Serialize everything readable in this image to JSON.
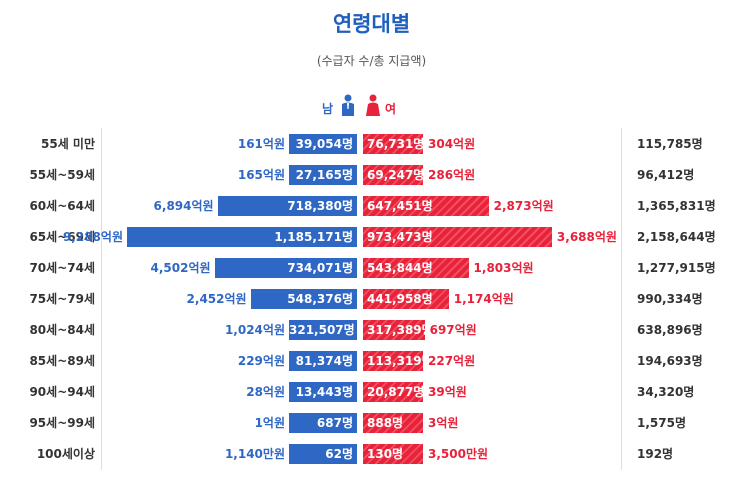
{
  "title": "연령대별",
  "subtitle": "(수급자 수/총 지급액)",
  "legend": {
    "male": "남",
    "female": "여"
  },
  "colors": {
    "male": "#2f68c4",
    "female": "#e8223a",
    "title": "#1f5fbf"
  },
  "icons": {
    "male": "male-person-icon",
    "female": "female-person-icon"
  },
  "chart_data": {
    "type": "bar",
    "orientation": "horizontal-diverging",
    "categories": [
      "55세 미만",
      "55세~59세",
      "60세~64세",
      "65세~69세",
      "70세~74세",
      "75세~79세",
      "80세~84세",
      "85세~89세",
      "90세~94세",
      "95세~99세",
      "100세이상"
    ],
    "series": [
      {
        "name": "남",
        "values": [
          39054,
          27165,
          718380,
          1185171,
          734071,
          548376,
          321507,
          81374,
          13443,
          687,
          62
        ],
        "labels": [
          "39,054명",
          "27,165명",
          "718,380명",
          "1,185,171명",
          "734,071명",
          "548,376명",
          "321,507명",
          "81,374명",
          "13,443명",
          "687명",
          "62명"
        ],
        "amounts": [
          "161억원",
          "165억원",
          "6,894억원",
          "9,288억원",
          "4,502억원",
          "2,452억원",
          "1,024억원",
          "229억원",
          "28억원",
          "1억원",
          "1,140만원"
        ]
      },
      {
        "name": "여",
        "values": [
          76731,
          69247,
          647451,
          973473,
          543844,
          441958,
          317389,
          113319,
          20877,
          888,
          130
        ],
        "labels": [
          "76,731명",
          "69,247명",
          "647,451명",
          "973,473명",
          "543,844명",
          "441,958명",
          "317,389명",
          "113,319명",
          "20,877명",
          "888명",
          "130명"
        ],
        "amounts": [
          "304억원",
          "286억원",
          "2,873억원",
          "3,688억원",
          "1,803억원",
          "1,174억원",
          "697억원",
          "227억원",
          "39억원",
          "3억원",
          "3,500만원"
        ]
      }
    ],
    "totals": [
      "115,785명",
      "96,412명",
      "1,365,831명",
      "2,158,644명",
      "1,277,915명",
      "990,334명",
      "638,896명",
      "194,693명",
      "34,320명",
      "1,575명",
      "192명"
    ]
  }
}
